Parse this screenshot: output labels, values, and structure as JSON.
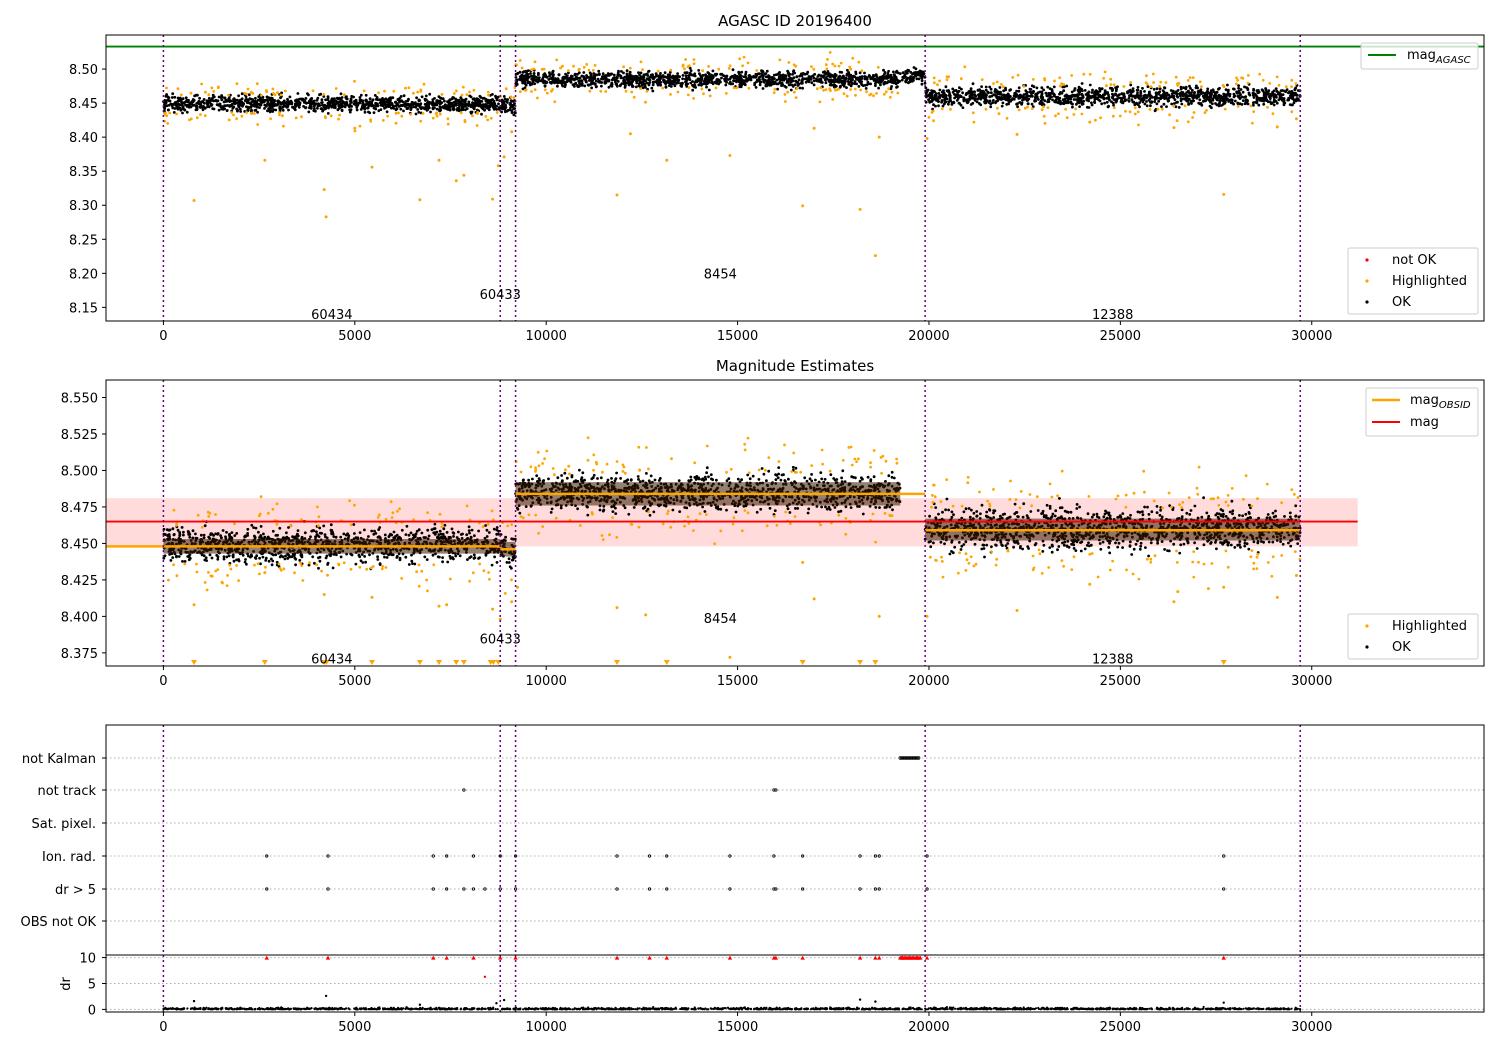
{
  "chart_data": [
    {
      "id": "agasc",
      "type": "scatter",
      "title": "AGASC ID 20196400",
      "xlim": [
        -1500,
        34500
      ],
      "ylim": [
        8.13,
        8.55
      ],
      "xticks": [
        0,
        5000,
        10000,
        15000,
        20000,
        25000,
        30000
      ],
      "yticks": [
        8.15,
        8.2,
        8.25,
        8.3,
        8.35,
        8.4,
        8.45,
        8.5
      ],
      "ytick_labels": [
        "8.15",
        "8.20",
        "8.25",
        "8.30",
        "8.35",
        "8.40",
        "8.45",
        "8.50"
      ],
      "segment_boundaries": [
        0,
        8800,
        9200,
        19900,
        29700
      ],
      "segments": [
        {
          "label": "60434",
          "x0": 0,
          "x1": 8800,
          "ok_mean": 8.449,
          "ok_spread": 0.006,
          "hl_mean": 8.447,
          "hl_spread": 0.01,
          "label_pos": [
            4400,
            8.14
          ]
        },
        {
          "label": "60433",
          "x0": 8800,
          "x1": 9200,
          "ok_mean": 8.446,
          "ok_spread": 0.006,
          "hl_mean": 8.44,
          "hl_spread": 0.01,
          "label_pos": [
            8800,
            8.17
          ]
        },
        {
          "label": "8454",
          "x0": 9200,
          "x1": 19250,
          "ok_mean": 8.485,
          "ok_spread": 0.006,
          "hl_mean": 8.48,
          "hl_spread": 0.012,
          "label_pos": [
            14550,
            8.2
          ]
        },
        {
          "label": "12388",
          "x0": 19900,
          "x1": 29700,
          "ok_mean": 8.46,
          "ok_spread": 0.007,
          "hl_mean": 8.465,
          "hl_spread": 0.014,
          "label_pos": [
            24800,
            8.14
          ]
        }
      ],
      "outliers": [
        [
          800,
          8.307
        ],
        [
          2650,
          8.366
        ],
        [
          4200,
          8.323
        ],
        [
          4250,
          8.283
        ],
        [
          5450,
          8.356
        ],
        [
          6700,
          8.308
        ],
        [
          7200,
          8.366
        ],
        [
          7650,
          8.336
        ],
        [
          7850,
          8.344
        ],
        [
          8600,
          8.309
        ],
        [
          8750,
          8.358
        ],
        [
          8900,
          8.371
        ],
        [
          9100,
          8.408
        ],
        [
          11850,
          8.315
        ],
        [
          13150,
          8.366
        ],
        [
          14800,
          8.373
        ],
        [
          16700,
          8.299
        ],
        [
          17000,
          8.413
        ],
        [
          18200,
          8.294
        ],
        [
          18600,
          8.226
        ],
        [
          18700,
          8.4
        ],
        [
          19950,
          8.398
        ],
        [
          22300,
          8.404
        ],
        [
          24200,
          8.422
        ],
        [
          26400,
          8.414
        ],
        [
          27700,
          8.316
        ],
        [
          29100,
          8.415
        ],
        [
          29600,
          8.427
        ],
        [
          12200,
          8.405
        ],
        [
          5000,
          8.413
        ]
      ],
      "extra_segments": [
        {
          "x0": 19300,
          "x1": 19900,
          "ok_mean": 8.49,
          "ok_spread": 0.006
        }
      ],
      "lines": [
        {
          "name": "mag$_{AGASC}$",
          "legend_main": "mag",
          "legend_sub": "AGASC",
          "value": 8.533,
          "color": "#008000"
        }
      ],
      "legend_lines": {
        "main": "mag",
        "sub": "AGASC"
      },
      "legend_points": [
        {
          "name": "not OK",
          "color": "#ff0000"
        },
        {
          "name": "Highlighted",
          "color": "#ffa500"
        },
        {
          "name": "OK",
          "color": "#000000"
        }
      ],
      "grid": false,
      "legend_placement": [
        "upper right",
        "lower right"
      ]
    },
    {
      "id": "estimates",
      "type": "scatter",
      "title": "Magnitude Estimates",
      "xlim": [
        -1500,
        34500
      ],
      "ylim": [
        8.366,
        8.562
      ],
      "xticks": [
        0,
        5000,
        10000,
        15000,
        20000,
        25000,
        30000
      ],
      "yticks": [
        8.375,
        8.4,
        8.425,
        8.45,
        8.475,
        8.5,
        8.525,
        8.55
      ],
      "ytick_labels": [
        "8.375",
        "8.400",
        "8.425",
        "8.450",
        "8.475",
        "8.500",
        "8.525",
        "8.550"
      ],
      "segment_boundaries": [
        0,
        8800,
        9200,
        19900,
        29700
      ],
      "segments": [
        {
          "label": "60434",
          "x0": 0,
          "x1": 8800,
          "ok_mean": 8.449,
          "ok_spread": 0.006,
          "mag_obsid": 8.448,
          "band": [
            8.443,
            8.453
          ],
          "label_pos": [
            4400,
            8.371
          ]
        },
        {
          "label": "60433",
          "x0": 8800,
          "x1": 9200,
          "ok_mean": 8.446,
          "ok_spread": 0.006,
          "mag_obsid": 8.446,
          "band": [
            8.441,
            8.451
          ],
          "label_pos": [
            8800,
            8.385
          ]
        },
        {
          "label": "8454",
          "x0": 9200,
          "x1": 19250,
          "ok_mean": 8.485,
          "ok_spread": 0.006,
          "mag_obsid": 8.484,
          "band": [
            8.476,
            8.492
          ],
          "label_pos": [
            14550,
            8.399
          ]
        },
        {
          "label": "12388",
          "x0": 19900,
          "x1": 29700,
          "ok_mean": 8.46,
          "ok_spread": 0.007,
          "mag_obsid": 8.459,
          "band": [
            8.452,
            8.467
          ],
          "label_pos": [
            24800,
            8.371
          ]
        }
      ],
      "outliers": [
        [
          800,
          8.408
        ],
        [
          2650,
          8.43
        ],
        [
          4200,
          8.415
        ],
        [
          5450,
          8.413
        ],
        [
          7200,
          8.407
        ],
        [
          7400,
          8.408
        ],
        [
          8600,
          8.405
        ],
        [
          8800,
          8.398
        ],
        [
          9100,
          8.41
        ],
        [
          9250,
          8.42
        ],
        [
          11850,
          8.406
        ],
        [
          12600,
          8.401
        ],
        [
          14800,
          8.372
        ],
        [
          16700,
          8.437
        ],
        [
          17000,
          8.412
        ],
        [
          18700,
          8.4
        ],
        [
          19950,
          8.4
        ],
        [
          22300,
          8.404
        ],
        [
          24200,
          8.422
        ],
        [
          26400,
          8.41
        ],
        [
          26500,
          8.417
        ],
        [
          27300,
          8.419
        ],
        [
          27700,
          8.42
        ],
        [
          29100,
          8.413
        ],
        [
          29600,
          8.428
        ]
      ],
      "clipped_markers_x": [
        800,
        2650,
        4200,
        4260,
        5450,
        6700,
        7200,
        7650,
        7850,
        8550,
        8620,
        8750,
        11850,
        13150,
        16700,
        18200,
        18600,
        27700
      ],
      "mag": {
        "name": "mag",
        "value": 8.465,
        "band": [
          8.448,
          8.481
        ],
        "color": "#ff0000",
        "x0": -1500,
        "x1": 31200
      },
      "mag_obsid_line": {
        "x0": -1500,
        "x1": 19900
      },
      "legend_lines": [
        {
          "name": "mag$_{OBSID}$",
          "main": "mag",
          "sub": "OBSID",
          "color": "#ffa500"
        },
        {
          "name": "mag",
          "main": "mag",
          "sub": "",
          "color": "#ff0000"
        }
      ],
      "legend_points": [
        {
          "name": "Highlighted",
          "color": "#ffa500"
        },
        {
          "name": "OK",
          "color": "#000000"
        }
      ],
      "grid": false,
      "legend_placement": [
        "upper right",
        "lower right"
      ]
    },
    {
      "id": "flags",
      "type": "scatter",
      "xlim": [
        -1500,
        34500
      ],
      "categories": [
        "not Kalman",
        "not track",
        "Sat. pixel.",
        "Ion. rad.",
        "dr > 5",
        "OBS not OK"
      ],
      "flag_points": {
        "not Kalman": [
          [
            19250,
            19750
          ]
        ],
        "not track": [
          7850,
          15950,
          16000
        ],
        "Sat. pixel.": [],
        "Ion. rad.": [
          2700,
          4300,
          7050,
          7400,
          8100,
          8800,
          9200,
          11850,
          12700,
          13150,
          14800,
          15950,
          16700,
          18200,
          18600,
          18700,
          19950,
          27700
        ],
        "dr > 5": [
          2700,
          4300,
          7050,
          7400,
          7850,
          8100,
          8400,
          8800,
          9200,
          11850,
          12700,
          13150,
          14800,
          15950,
          16000,
          16700,
          18200,
          18600,
          18700,
          19950,
          27700
        ],
        "OBS not OK": []
      },
      "grid": true
    },
    {
      "id": "dr",
      "type": "scatter",
      "ylabel": "dr",
      "xlim": [
        -1500,
        34500
      ],
      "ylim": [
        -0.5,
        10.5
      ],
      "xticks": [
        0,
        5000,
        10000,
        15000,
        20000,
        25000,
        30000
      ],
      "yticks": [
        0,
        5,
        10
      ],
      "clipped_red_x": [
        2700,
        4300,
        7050,
        7400,
        8100,
        8800,
        9200,
        11850,
        12700,
        13150,
        14800,
        15950,
        16000,
        16700,
        18200,
        18600,
        18700,
        19300,
        19500,
        19700,
        19950,
        27700
      ],
      "large_points": [
        [
          800,
          1.6
        ],
        [
          4250,
          2.6
        ],
        [
          8400,
          6.3
        ],
        [
          8700,
          1.2
        ],
        [
          8900,
          1.8
        ],
        [
          18200,
          1.9
        ],
        [
          18600,
          1.5
        ],
        [
          27700,
          1.3
        ],
        [
          6700,
          0.9
        ]
      ],
      "grid": true
    }
  ]
}
